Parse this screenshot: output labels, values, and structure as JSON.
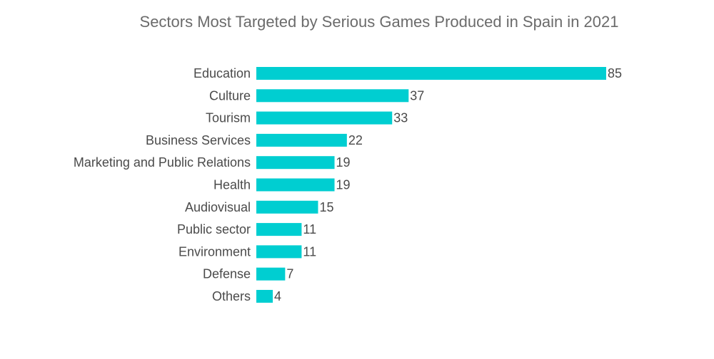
{
  "chart_data": {
    "type": "bar",
    "orientation": "horizontal",
    "title": "Sectors Most Targeted by Serious Games Produced in Spain in 2021",
    "xlabel": "",
    "ylabel": "",
    "categories": [
      "Education",
      "Culture",
      "Tourism",
      "Business Services",
      "Marketing and Public Relations",
      "Health",
      "Audiovisual",
      "Public sector",
      "Environment",
      "Defense",
      "Others"
    ],
    "values": [
      85,
      37,
      33,
      22,
      19,
      19,
      15,
      11,
      11,
      7,
      4
    ],
    "xlim": [
      0,
      85
    ],
    "grid": false,
    "legend": "none",
    "bar_color": "#00ced1",
    "text_color": "#4a4a4a",
    "title_color": "#6b6b6b"
  }
}
